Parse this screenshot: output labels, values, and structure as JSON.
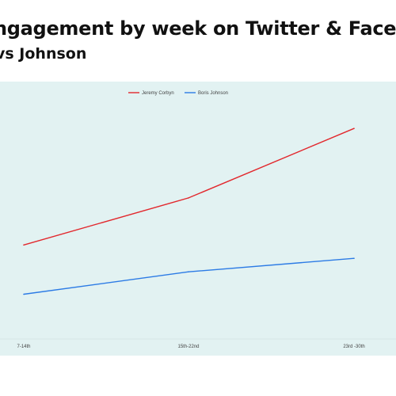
{
  "page": {
    "title": "ngagement by week on Twitter & Faceb",
    "subtitle": "vs Johnson"
  },
  "chart_data": {
    "type": "line",
    "categories": [
      "7-14th",
      "15th-22nd",
      "23rd -30th"
    ],
    "series": [
      {
        "name": "Jeremy Corbyn",
        "color": "#e2282d",
        "values": [
          0.42,
          0.63,
          0.94
        ]
      },
      {
        "name": "Boris Johnson",
        "color": "#2c7be5",
        "values": [
          0.2,
          0.3,
          0.36
        ]
      }
    ],
    "ylim": [
      0,
      1.1
    ],
    "grid": false,
    "legend": "top-center"
  }
}
